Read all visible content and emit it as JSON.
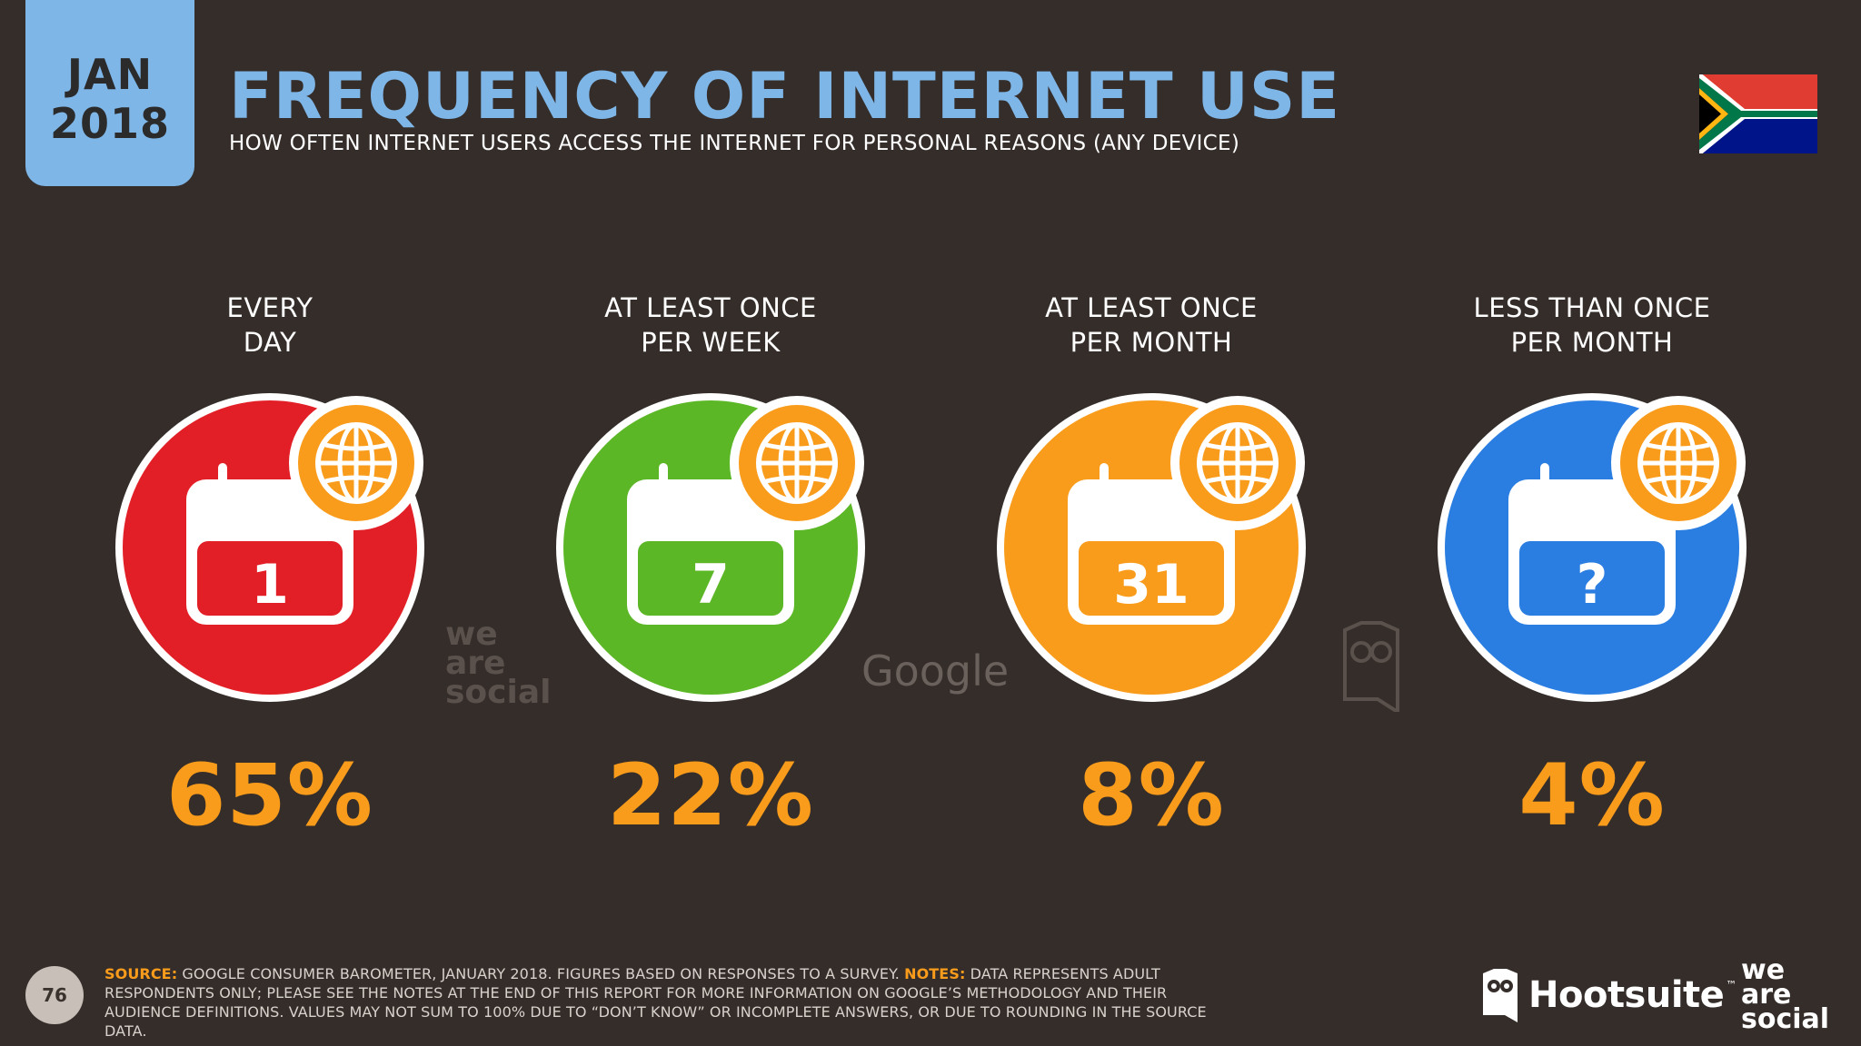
{
  "header": {
    "date_month": "JAN",
    "date_year": "2018",
    "title": "FREQUENCY OF INTERNET USE",
    "subtitle": "HOW OFTEN INTERNET USERS ACCESS THE INTERNET FOR PERSONAL REASONS (ANY DEVICE)"
  },
  "flag_icon": "south-africa-flag-icon",
  "categories": [
    {
      "label": "EVERY\nDAY",
      "calendar_text": "1",
      "value": "65%",
      "color": "#e21f26"
    },
    {
      "label": "AT LEAST ONCE\nPER WEEK",
      "calendar_text": "7",
      "value": "22%",
      "color": "#5cb726"
    },
    {
      "label": "AT LEAST ONCE\nPER MONTH",
      "calendar_text": "31",
      "value": "8%",
      "color": "#f99c1c"
    },
    {
      "label": "LESS THAN ONCE\nPER MONTH",
      "calendar_text": "?",
      "value": "4%",
      "color": "#2b7ee1"
    }
  ],
  "globe_badge_color": "#f99c1c",
  "accent_color": "#f99c1c",
  "watermarks": {
    "we_are_social": "we\nare\nsocial",
    "google": "Google"
  },
  "footer": {
    "page_number": "76",
    "source_label": "SOURCE:",
    "source_text": " GOOGLE CONSUMER BAROMETER, JANUARY 2018. FIGURES BASED ON RESPONSES TO A SURVEY. ",
    "notes_label": "NOTES:",
    "notes_text": " DATA REPRESENTS ADULT RESPONDENTS ONLY; PLEASE SEE THE NOTES AT THE END OF THIS REPORT FOR MORE INFORMATION ON GOOGLE’S METHODOLOGY AND THEIR AUDIENCE DEFINITIONS. VALUES MAY NOT SUM TO 100% DUE TO “DON’T KNOW” OR INCOMPLETE ANSWERS, OR DUE TO ROUNDING IN THE SOURCE DATA.",
    "hootsuite_name": "Hootsuite",
    "hootsuite_tm": "™",
    "we_are_social_logo": "we\nare\nsocial"
  }
}
